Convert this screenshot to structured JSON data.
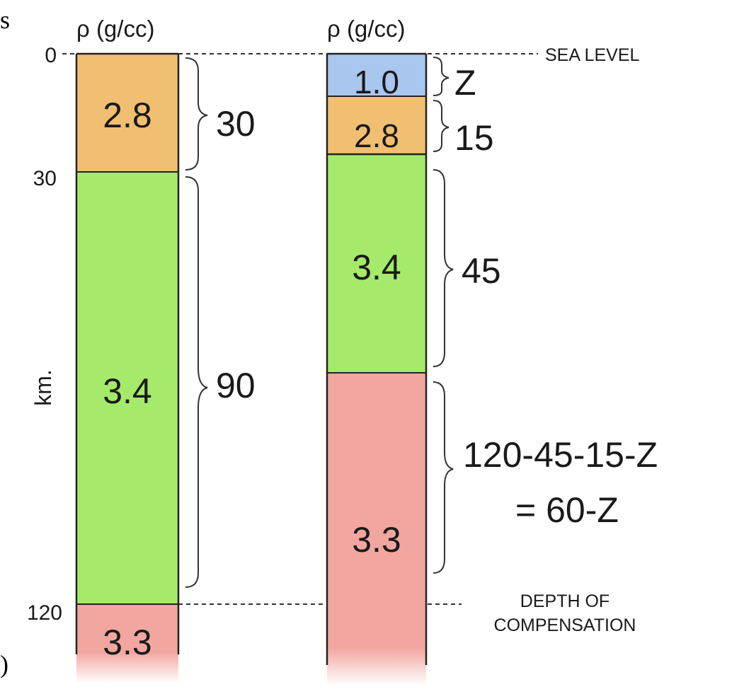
{
  "edge_fragment_top": "s",
  "edge_fragment_bottom": ")",
  "column1": {
    "header": "ρ (g/cc)",
    "layers": [
      {
        "density": "2.8",
        "thickness": "30",
        "color": "#f1bf72"
      },
      {
        "density": "3.4",
        "thickness": "90",
        "color": "#a5ea6a"
      },
      {
        "density": "3.3",
        "thickness": "",
        "color": "#f2a6a0"
      }
    ]
  },
  "column2": {
    "header": "ρ (g/cc)",
    "layers": [
      {
        "density": "1.0",
        "thickness": "Z",
        "color": "#a9c6ee"
      },
      {
        "density": "2.8",
        "thickness": "15",
        "color": "#f1bf72"
      },
      {
        "density": "3.4",
        "thickness": "45",
        "color": "#a5ea6a"
      },
      {
        "density": "3.3",
        "thickness_line1": "120-45-15-Z",
        "thickness_line2": "= 60-Z",
        "color": "#f2a6a0"
      }
    ]
  },
  "depth_axis": {
    "label": "km.",
    "ticks": [
      "0",
      "30",
      "120"
    ]
  },
  "reference_lines": {
    "sea_level": "SEA LEVEL",
    "compensation_line1": "DEPTH OF",
    "compensation_line2": "COMPENSATION"
  }
}
